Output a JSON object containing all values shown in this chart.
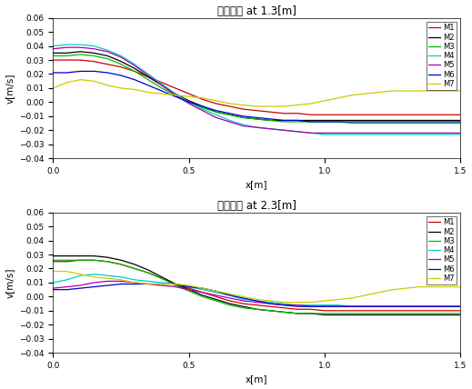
{
  "title1": "상승속도 at 1.3[m]",
  "title2": "상승속도 at 2.3[m]",
  "xlabel": "x[m]",
  "ylabel": "v[m/s]",
  "xlim": [
    0,
    1.5
  ],
  "ylim": [
    -0.04,
    0.06
  ],
  "models": [
    "M1",
    "M2",
    "M3",
    "M4",
    "M5",
    "M6",
    "M7"
  ],
  "colors": [
    "#cc0000",
    "#000000",
    "#00bb00",
    "#00cccc",
    "#aa00aa",
    "#0000cc",
    "#cccc00"
  ],
  "plot1": {
    "M1": {
      "x": [
        0,
        0.05,
        0.1,
        0.15,
        0.2,
        0.25,
        0.3,
        0.35,
        0.4,
        0.45,
        0.5,
        0.55,
        0.6,
        0.65,
        0.7,
        0.75,
        0.8,
        0.85,
        0.9,
        0.95,
        1.0,
        1.05,
        1.1,
        1.15,
        1.2,
        1.25,
        1.3,
        1.35,
        1.4,
        1.45,
        1.5
      ],
      "y": [
        0.03,
        0.03,
        0.03,
        0.029,
        0.027,
        0.025,
        0.022,
        0.018,
        0.014,
        0.01,
        0.006,
        0.002,
        -0.001,
        -0.003,
        -0.005,
        -0.006,
        -0.007,
        -0.008,
        -0.008,
        -0.009,
        -0.009,
        -0.009,
        -0.009,
        -0.009,
        -0.009,
        -0.009,
        -0.009,
        -0.009,
        -0.009,
        -0.009,
        -0.009
      ]
    },
    "M2": {
      "x": [
        0,
        0.05,
        0.1,
        0.15,
        0.2,
        0.25,
        0.3,
        0.35,
        0.4,
        0.45,
        0.5,
        0.55,
        0.6,
        0.65,
        0.7,
        0.75,
        0.8,
        0.85,
        0.9,
        0.95,
        1.0,
        1.05,
        1.1,
        1.15,
        1.2,
        1.25,
        1.3,
        1.35,
        1.4,
        1.45,
        1.5
      ],
      "y": [
        0.035,
        0.035,
        0.036,
        0.035,
        0.033,
        0.029,
        0.024,
        0.018,
        0.012,
        0.006,
        0.001,
        -0.003,
        -0.007,
        -0.009,
        -0.011,
        -0.012,
        -0.013,
        -0.013,
        -0.013,
        -0.013,
        -0.013,
        -0.013,
        -0.013,
        -0.013,
        -0.013,
        -0.013,
        -0.013,
        -0.013,
        -0.013,
        -0.013,
        -0.013
      ]
    },
    "M3": {
      "x": [
        0,
        0.05,
        0.1,
        0.15,
        0.2,
        0.25,
        0.3,
        0.35,
        0.4,
        0.45,
        0.5,
        0.55,
        0.6,
        0.65,
        0.7,
        0.75,
        0.8,
        0.85,
        0.9,
        0.95,
        1.0,
        1.05,
        1.1,
        1.15,
        1.2,
        1.25,
        1.3,
        1.35,
        1.4,
        1.45,
        1.5
      ],
      "y": [
        0.033,
        0.033,
        0.034,
        0.033,
        0.031,
        0.027,
        0.022,
        0.016,
        0.01,
        0.005,
        0.0,
        -0.004,
        -0.007,
        -0.009,
        -0.011,
        -0.012,
        -0.013,
        -0.014,
        -0.014,
        -0.014,
        -0.014,
        -0.014,
        -0.015,
        -0.015,
        -0.015,
        -0.015,
        -0.015,
        -0.015,
        -0.015,
        -0.015,
        -0.015
      ]
    },
    "M4": {
      "x": [
        0,
        0.05,
        0.1,
        0.15,
        0.2,
        0.25,
        0.3,
        0.35,
        0.4,
        0.45,
        0.5,
        0.55,
        0.6,
        0.65,
        0.7,
        0.75,
        0.8,
        0.85,
        0.9,
        0.95,
        1.0,
        1.05,
        1.1,
        1.15,
        1.2,
        1.25,
        1.3,
        1.35,
        1.4,
        1.45,
        1.5
      ],
      "y": [
        0.04,
        0.041,
        0.041,
        0.04,
        0.037,
        0.033,
        0.027,
        0.02,
        0.013,
        0.006,
        0.0,
        -0.005,
        -0.009,
        -0.013,
        -0.016,
        -0.018,
        -0.019,
        -0.02,
        -0.021,
        -0.022,
        -0.023,
        -0.023,
        -0.023,
        -0.023,
        -0.023,
        -0.023,
        -0.023,
        -0.023,
        -0.023,
        -0.023,
        -0.023
      ]
    },
    "M5": {
      "x": [
        0,
        0.05,
        0.1,
        0.15,
        0.2,
        0.25,
        0.3,
        0.35,
        0.4,
        0.45,
        0.5,
        0.55,
        0.6,
        0.65,
        0.7,
        0.75,
        0.8,
        0.85,
        0.9,
        0.95,
        1.0,
        1.05,
        1.1,
        1.15,
        1.2,
        1.25,
        1.3,
        1.35,
        1.4,
        1.45,
        1.5
      ],
      "y": [
        0.038,
        0.039,
        0.039,
        0.038,
        0.036,
        0.032,
        0.026,
        0.019,
        0.012,
        0.005,
        -0.001,
        -0.006,
        -0.011,
        -0.014,
        -0.017,
        -0.018,
        -0.019,
        -0.02,
        -0.021,
        -0.022,
        -0.022,
        -0.022,
        -0.022,
        -0.022,
        -0.022,
        -0.022,
        -0.022,
        -0.022,
        -0.022,
        -0.022,
        -0.022
      ]
    },
    "M6": {
      "x": [
        0,
        0.05,
        0.1,
        0.15,
        0.2,
        0.25,
        0.3,
        0.35,
        0.4,
        0.45,
        0.5,
        0.55,
        0.6,
        0.65,
        0.7,
        0.75,
        0.8,
        0.85,
        0.9,
        0.95,
        1.0,
        1.05,
        1.1,
        1.15,
        1.2,
        1.25,
        1.3,
        1.35,
        1.4,
        1.45,
        1.5
      ],
      "y": [
        0.021,
        0.021,
        0.022,
        0.022,
        0.021,
        0.019,
        0.016,
        0.012,
        0.008,
        0.004,
        0.0,
        -0.003,
        -0.006,
        -0.008,
        -0.01,
        -0.011,
        -0.012,
        -0.013,
        -0.013,
        -0.014,
        -0.014,
        -0.014,
        -0.014,
        -0.014,
        -0.014,
        -0.014,
        -0.014,
        -0.014,
        -0.014,
        -0.014,
        -0.014
      ]
    },
    "M7": {
      "x": [
        0,
        0.05,
        0.1,
        0.15,
        0.2,
        0.25,
        0.3,
        0.35,
        0.4,
        0.45,
        0.5,
        0.55,
        0.6,
        0.65,
        0.7,
        0.75,
        0.8,
        0.85,
        0.9,
        0.95,
        1.0,
        1.05,
        1.1,
        1.15,
        1.2,
        1.25,
        1.3,
        1.35,
        1.4,
        1.45,
        1.5
      ],
      "y": [
        0.01,
        0.014,
        0.016,
        0.015,
        0.012,
        0.01,
        0.009,
        0.007,
        0.006,
        0.005,
        0.004,
        0.003,
        0.001,
        -0.001,
        -0.002,
        -0.003,
        -0.003,
        -0.003,
        -0.002,
        -0.001,
        0.001,
        0.003,
        0.005,
        0.006,
        0.007,
        0.008,
        0.008,
        0.008,
        0.008,
        0.008,
        0.008
      ]
    }
  },
  "plot2": {
    "M1": {
      "x": [
        0,
        0.05,
        0.1,
        0.15,
        0.2,
        0.25,
        0.3,
        0.35,
        0.4,
        0.45,
        0.5,
        0.55,
        0.6,
        0.65,
        0.7,
        0.75,
        0.8,
        0.85,
        0.9,
        0.95,
        1.0,
        1.05,
        1.1,
        1.15,
        1.2,
        1.25,
        1.3,
        1.35,
        1.4,
        1.45,
        1.5
      ],
      "y": [
        0.025,
        0.025,
        0.026,
        0.026,
        0.025,
        0.023,
        0.02,
        0.017,
        0.013,
        0.009,
        0.006,
        0.003,
        0.0,
        -0.003,
        -0.005,
        -0.006,
        -0.007,
        -0.008,
        -0.009,
        -0.009,
        -0.01,
        -0.01,
        -0.01,
        -0.01,
        -0.01,
        -0.01,
        -0.01,
        -0.01,
        -0.01,
        -0.01,
        -0.01
      ]
    },
    "M2": {
      "x": [
        0,
        0.05,
        0.1,
        0.15,
        0.2,
        0.25,
        0.3,
        0.35,
        0.4,
        0.45,
        0.5,
        0.55,
        0.6,
        0.65,
        0.7,
        0.75,
        0.8,
        0.85,
        0.9,
        0.95,
        1.0,
        1.05,
        1.1,
        1.15,
        1.2,
        1.25,
        1.3,
        1.35,
        1.4,
        1.45,
        1.5
      ],
      "y": [
        0.029,
        0.029,
        0.029,
        0.029,
        0.028,
        0.026,
        0.023,
        0.019,
        0.014,
        0.009,
        0.005,
        0.001,
        -0.002,
        -0.005,
        -0.007,
        -0.009,
        -0.01,
        -0.011,
        -0.012,
        -0.012,
        -0.013,
        -0.013,
        -0.013,
        -0.013,
        -0.013,
        -0.013,
        -0.013,
        -0.013,
        -0.013,
        -0.013,
        -0.013
      ]
    },
    "M3": {
      "x": [
        0,
        0.05,
        0.1,
        0.15,
        0.2,
        0.25,
        0.3,
        0.35,
        0.4,
        0.45,
        0.5,
        0.55,
        0.6,
        0.65,
        0.7,
        0.75,
        0.8,
        0.85,
        0.9,
        0.95,
        1.0,
        1.05,
        1.1,
        1.15,
        1.2,
        1.25,
        1.3,
        1.35,
        1.4,
        1.45,
        1.5
      ],
      "y": [
        0.026,
        0.026,
        0.026,
        0.026,
        0.025,
        0.023,
        0.02,
        0.017,
        0.013,
        0.008,
        0.004,
        0.0,
        -0.003,
        -0.006,
        -0.008,
        -0.009,
        -0.01,
        -0.011,
        -0.012,
        -0.012,
        -0.012,
        -0.012,
        -0.012,
        -0.012,
        -0.012,
        -0.012,
        -0.012,
        -0.012,
        -0.012,
        -0.012,
        -0.012
      ]
    },
    "M4": {
      "x": [
        0,
        0.05,
        0.1,
        0.15,
        0.2,
        0.25,
        0.3,
        0.35,
        0.4,
        0.45,
        0.5,
        0.55,
        0.6,
        0.65,
        0.7,
        0.75,
        0.8,
        0.85,
        0.9,
        0.95,
        1.0,
        1.05,
        1.1,
        1.15,
        1.2,
        1.25,
        1.3,
        1.35,
        1.4,
        1.45,
        1.5
      ],
      "y": [
        0.01,
        0.012,
        0.015,
        0.016,
        0.015,
        0.014,
        0.012,
        0.011,
        0.01,
        0.009,
        0.007,
        0.005,
        0.003,
        0.001,
        -0.002,
        -0.003,
        -0.004,
        -0.005,
        -0.006,
        -0.006,
        -0.006,
        -0.006,
        -0.007,
        -0.007,
        -0.007,
        -0.007,
        -0.007,
        -0.007,
        -0.007,
        -0.007,
        -0.007
      ]
    },
    "M5": {
      "x": [
        0,
        0.05,
        0.1,
        0.15,
        0.2,
        0.25,
        0.3,
        0.35,
        0.4,
        0.45,
        0.5,
        0.55,
        0.6,
        0.65,
        0.7,
        0.75,
        0.8,
        0.85,
        0.9,
        0.95,
        1.0,
        1.05,
        1.1,
        1.15,
        1.2,
        1.25,
        1.3,
        1.35,
        1.4,
        1.45,
        1.5
      ],
      "y": [
        0.006,
        0.007,
        0.008,
        0.01,
        0.011,
        0.011,
        0.01,
        0.009,
        0.008,
        0.007,
        0.005,
        0.003,
        0.001,
        -0.001,
        -0.003,
        -0.004,
        -0.005,
        -0.006,
        -0.006,
        -0.007,
        -0.007,
        -0.007,
        -0.007,
        -0.007,
        -0.007,
        -0.007,
        -0.007,
        -0.007,
        -0.007,
        -0.007,
        -0.007
      ]
    },
    "M6": {
      "x": [
        0,
        0.05,
        0.1,
        0.15,
        0.2,
        0.25,
        0.3,
        0.35,
        0.4,
        0.45,
        0.5,
        0.55,
        0.6,
        0.65,
        0.7,
        0.75,
        0.8,
        0.85,
        0.9,
        0.95,
        1.0,
        1.05,
        1.1,
        1.15,
        1.2,
        1.25,
        1.3,
        1.35,
        1.4,
        1.45,
        1.5
      ],
      "y": [
        0.005,
        0.005,
        0.006,
        0.007,
        0.008,
        0.009,
        0.009,
        0.009,
        0.009,
        0.009,
        0.007,
        0.006,
        0.004,
        0.001,
        -0.001,
        -0.003,
        -0.005,
        -0.006,
        -0.007,
        -0.007,
        -0.007,
        -0.007,
        -0.007,
        -0.007,
        -0.007,
        -0.007,
        -0.007,
        -0.007,
        -0.007,
        -0.007,
        -0.007
      ]
    },
    "M7": {
      "x": [
        0,
        0.05,
        0.1,
        0.15,
        0.2,
        0.25,
        0.3,
        0.35,
        0.4,
        0.45,
        0.5,
        0.55,
        0.6,
        0.65,
        0.7,
        0.75,
        0.8,
        0.85,
        0.9,
        0.95,
        1.0,
        1.05,
        1.1,
        1.15,
        1.2,
        1.25,
        1.3,
        1.35,
        1.4,
        1.45,
        1.5
      ],
      "y": [
        0.018,
        0.018,
        0.016,
        0.014,
        0.013,
        0.012,
        0.01,
        0.009,
        0.009,
        0.009,
        0.008,
        0.006,
        0.004,
        0.002,
        0.0,
        -0.002,
        -0.003,
        -0.004,
        -0.004,
        -0.004,
        -0.003,
        -0.002,
        -0.001,
        0.001,
        0.003,
        0.005,
        0.006,
        0.007,
        0.007,
        0.007,
        0.007
      ]
    }
  }
}
